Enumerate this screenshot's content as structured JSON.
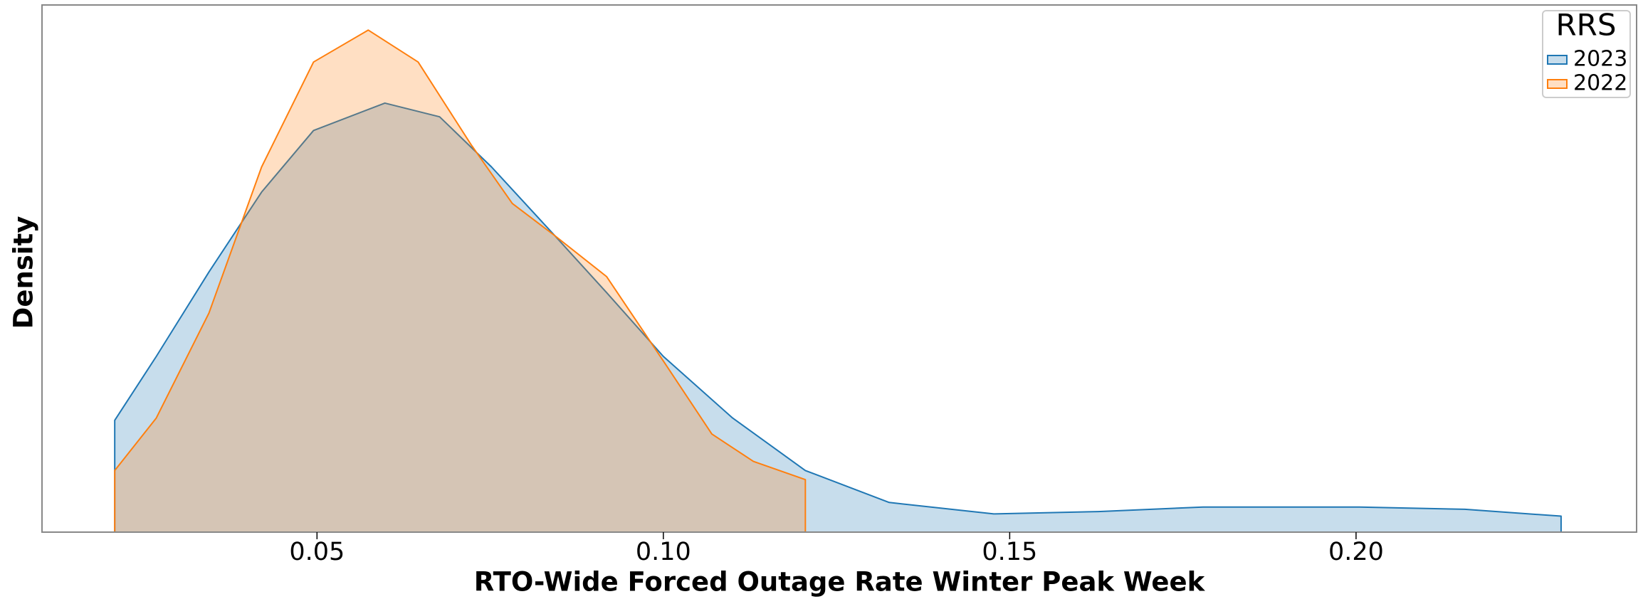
{
  "chart_data": {
    "type": "kde",
    "xlabel": "RTO-Wide Forced Outage Rate Winter Peak Week",
    "ylabel": "Density",
    "legend_title": "RRS",
    "legend": "upper right",
    "xlim": [
      0.0103,
      0.2405
    ],
    "ylim": [
      0,
      23.1
    ],
    "xticks": [
      0.05,
      {
        "value": 0.1,
        "label": "0.10"
      },
      0.15,
      {
        "value": 0.2,
        "label": "0.20"
      }
    ],
    "series": [
      {
        "name": "2023",
        "color": "#1f77b4",
        "x": [
          0.0208,
          0.0268,
          0.0344,
          0.042,
          0.0495,
          0.0598,
          0.0677,
          0.0752,
          0.0843,
          0.0918,
          0.1,
          0.11,
          0.1205,
          0.1326,
          0.1477,
          0.1628,
          0.1779,
          0.2005,
          0.2157,
          0.2296
        ],
        "values": [
          4.9,
          7.7,
          11.4,
          14.9,
          17.6,
          18.8,
          18.2,
          16.0,
          13.0,
          10.5,
          7.7,
          5.0,
          2.7,
          1.3,
          0.8,
          0.9,
          1.1,
          1.1,
          1.0,
          0.7
        ]
      },
      {
        "name": "2022",
        "color": "#ff7f0e",
        "x": [
          0.0208,
          0.0268,
          0.0344,
          0.042,
          0.0495,
          0.0574,
          0.0646,
          0.0722,
          0.0782,
          0.0843,
          0.0918,
          0.1,
          0.107,
          0.113,
          0.1205
        ],
        "values": [
          2.7,
          5.0,
          9.6,
          16.0,
          20.6,
          22.0,
          20.6,
          17.0,
          14.4,
          13.0,
          11.2,
          7.5,
          4.3,
          3.1,
          2.3
        ]
      }
    ]
  }
}
